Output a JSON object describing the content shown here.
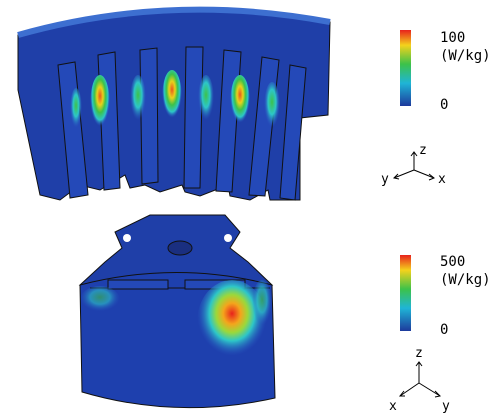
{
  "panels": [
    {
      "colorbar": {
        "max": "100",
        "unit": "(W/kg)",
        "min": "0"
      },
      "axes": {
        "z": "z",
        "y": "y",
        "x": "x"
      }
    },
    {
      "colorbar": {
        "max": "500",
        "unit": "(W/kg)",
        "min": "0"
      },
      "axes": {
        "z": "z",
        "x": "x",
        "y": "y"
      }
    }
  ]
}
